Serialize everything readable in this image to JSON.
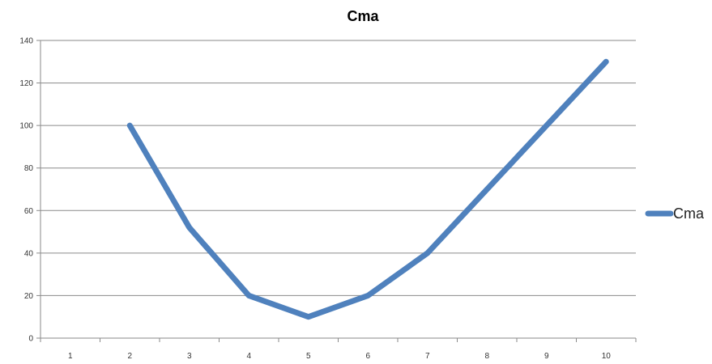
{
  "chart_data": {
    "type": "line",
    "title": "Cma",
    "xlabel": "",
    "ylabel": "",
    "categories": [
      "1",
      "2",
      "3",
      "4",
      "5",
      "6",
      "7",
      "8",
      "9",
      "10"
    ],
    "series": [
      {
        "name": "Cma",
        "values": [
          null,
          100,
          52,
          20,
          10,
          20,
          40,
          70,
          100,
          130
        ],
        "color": "#4F81BD"
      }
    ],
    "y_ticks": [
      0,
      20,
      40,
      60,
      80,
      100,
      120,
      140
    ],
    "ylim": [
      0,
      140
    ],
    "grid": "horizontal",
    "legend_position": "right"
  }
}
